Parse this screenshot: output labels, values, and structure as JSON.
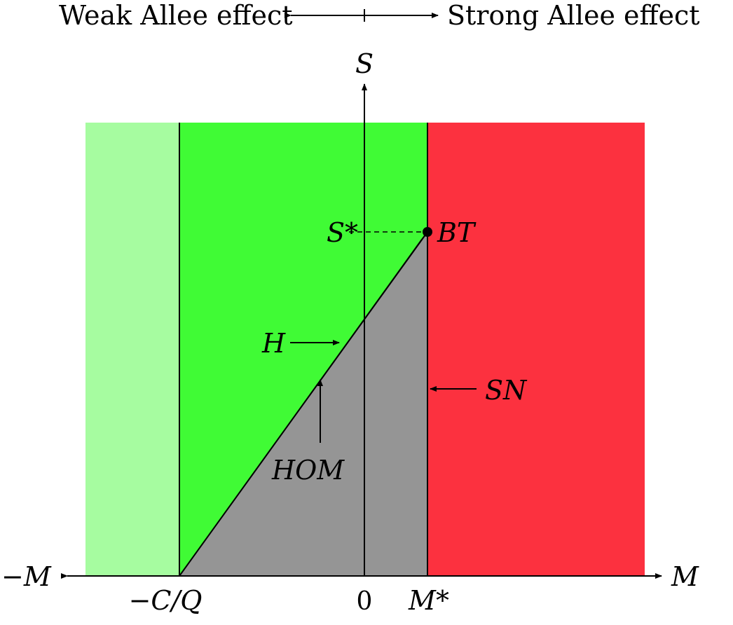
{
  "top_caption": {
    "left": "Weak Allee effect",
    "right": "Strong Allee effect"
  },
  "axes": {
    "y_label": "S",
    "x_label_right": "M",
    "x_label_left": "−M"
  },
  "ticks": {
    "neg_c_over_q": "−C/Q",
    "zero": "0",
    "m_star": "M*"
  },
  "points": {
    "s_star": "S*",
    "bt": "BT"
  },
  "curve_labels": {
    "h": "H",
    "hom": "HOM",
    "sn": "SN"
  },
  "colors": {
    "light_green": "#a6fca0",
    "green": "#40fb35",
    "red": "#fc313f",
    "gray": "#959595",
    "blue": "#3434dd",
    "line": "#000000"
  }
}
